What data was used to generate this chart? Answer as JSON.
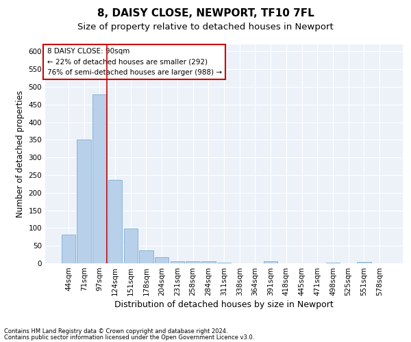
{
  "title1": "8, DAISY CLOSE, NEWPORT, TF10 7FL",
  "title2": "Size of property relative to detached houses in Newport",
  "xlabel": "Distribution of detached houses by size in Newport",
  "ylabel": "Number of detached properties",
  "categories": [
    "44sqm",
    "71sqm",
    "97sqm",
    "124sqm",
    "151sqm",
    "178sqm",
    "204sqm",
    "231sqm",
    "258sqm",
    "284sqm",
    "311sqm",
    "338sqm",
    "364sqm",
    "391sqm",
    "418sqm",
    "445sqm",
    "471sqm",
    "498sqm",
    "525sqm",
    "551sqm",
    "578sqm"
  ],
  "values": [
    82,
    350,
    478,
    236,
    98,
    37,
    17,
    6,
    5,
    5,
    2,
    0,
    0,
    5,
    0,
    0,
    0,
    2,
    0,
    3,
    0
  ],
  "bar_color": "#b8d0ea",
  "bar_edge_color": "#7aadd4",
  "redline_index": 2,
  "annotation_text": "8 DAISY CLOSE: 90sqm\n← 22% of detached houses are smaller (292)\n76% of semi-detached houses are larger (988) →",
  "annotation_box_color": "#ffffff",
  "annotation_box_edge": "#cc0000",
  "footer1": "Contains HM Land Registry data © Crown copyright and database right 2024.",
  "footer2": "Contains public sector information licensed under the Open Government Licence v3.0.",
  "ylim": [
    0,
    620
  ],
  "yticks": [
    0,
    50,
    100,
    150,
    200,
    250,
    300,
    350,
    400,
    450,
    500,
    550,
    600
  ],
  "bg_color": "#edf2f9",
  "grid_color": "#ffffff",
  "fig_color": "#ffffff",
  "title1_fontsize": 11,
  "title2_fontsize": 9.5,
  "tick_fontsize": 7.5,
  "ylabel_fontsize": 8.5,
  "xlabel_fontsize": 9,
  "annotation_fontsize": 7.5,
  "footer_fontsize": 6
}
